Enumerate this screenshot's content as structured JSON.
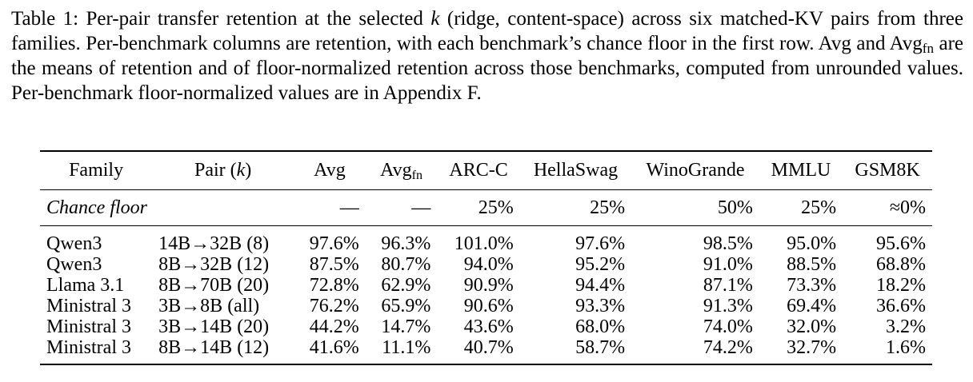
{
  "caption": {
    "label": "Table 1:",
    "part1": " Per-pair transfer retention at the selected ",
    "k": "k",
    "part2": " (ridge, content-space) across six matched-KV pairs from three families. Per-benchmark columns are retention, with each benchmark’s chance floor in the first row. Avg and Avg",
    "sub": "fn",
    "part3": " are the means of retention and of floor-normalized retention across those benchmarks, computed from unrounded values. Per-benchmark floor-normalized values are in Appendix F."
  },
  "table": {
    "headers": {
      "family": "Family",
      "pair": "Pair (",
      "pair_k": "k",
      "pair_close": ")",
      "avg": "Avg",
      "avgfn": "Avg",
      "avgfn_sub": "fn",
      "arc": "ARC-C",
      "hellaswag": "HellaSwag",
      "winogrande": "WinoGrande",
      "mmlu": "MMLU",
      "gsm8k": "GSM8K"
    },
    "floor": {
      "label": "Chance floor",
      "avg": "—",
      "avgfn": "—",
      "arc": "25%",
      "hellaswag": "25%",
      "winogrande": "50%",
      "mmlu": "25%",
      "gsm8k": "≈0%"
    },
    "rows": [
      {
        "family": "Qwen3",
        "pair": "14B→32B (8)",
        "avg": "97.6%",
        "avgfn": "96.3%",
        "arc": "101.0%",
        "hellaswag": "97.6%",
        "winogrande": "98.5%",
        "mmlu": "95.0%",
        "gsm8k": "95.6%"
      },
      {
        "family": "Qwen3",
        "pair": "8B→32B (12)",
        "avg": "87.5%",
        "avgfn": "80.7%",
        "arc": "94.0%",
        "hellaswag": "95.2%",
        "winogrande": "91.0%",
        "mmlu": "88.5%",
        "gsm8k": "68.8%"
      },
      {
        "family": "Llama 3.1",
        "pair": "8B→70B (20)",
        "avg": "72.8%",
        "avgfn": "62.9%",
        "arc": "90.9%",
        "hellaswag": "94.4%",
        "winogrande": "87.1%",
        "mmlu": "73.3%",
        "gsm8k": "18.2%"
      },
      {
        "family": "Ministral 3",
        "pair": "3B→8B (all)",
        "avg": "76.2%",
        "avgfn": "65.9%",
        "arc": "90.6%",
        "hellaswag": "93.3%",
        "winogrande": "91.3%",
        "mmlu": "69.4%",
        "gsm8k": "36.6%"
      },
      {
        "family": "Ministral 3",
        "pair": "3B→14B (20)",
        "avg": "44.2%",
        "avgfn": "14.7%",
        "arc": "43.6%",
        "hellaswag": "68.0%",
        "winogrande": "74.0%",
        "mmlu": "32.0%",
        "gsm8k": "3.2%"
      },
      {
        "family": "Ministral 3",
        "pair": "8B→14B (12)",
        "avg": "41.6%",
        "avgfn": "11.1%",
        "arc": "40.7%",
        "hellaswag": "58.7%",
        "winogrande": "74.2%",
        "mmlu": "32.7%",
        "gsm8k": "1.6%"
      }
    ]
  }
}
